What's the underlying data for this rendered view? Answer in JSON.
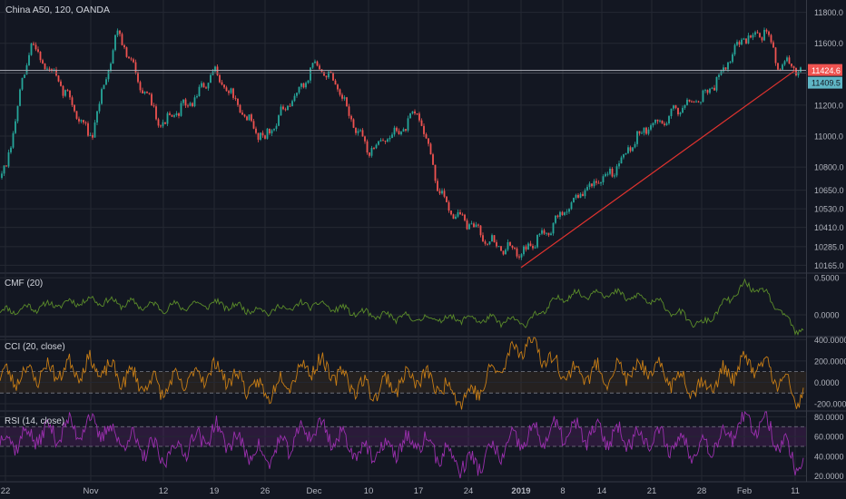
{
  "header": {
    "title": "China A50, 120, OANDA"
  },
  "panels": {
    "cmf": {
      "label": "CMF (20)",
      "ticks": [
        "0.5000",
        "0.0000"
      ]
    },
    "cci": {
      "label": "CCI (20, close)",
      "ticks": [
        "400.0000",
        "200.0000",
        "0.0000",
        "-200.0000"
      ]
    },
    "rsi": {
      "label": "RSI (14, close)",
      "ticks": [
        "80.0000",
        "60.0000",
        "40.0000",
        "20.0000"
      ]
    }
  },
  "price_axis": {
    "ticks": [
      "11800.0",
      "11600.0",
      "11200.0",
      "11000.0",
      "10800.0",
      "10650.0",
      "10530.0",
      "10410.0",
      "10285.0",
      "10165.0"
    ],
    "last_price_label": "11424.6",
    "prev_close_label": "11409.5"
  },
  "time_axis": {
    "labels": [
      "22",
      "Nov",
      "12",
      "19",
      "26",
      "Dec",
      "10",
      "17",
      "24",
      "2019",
      "8",
      "14",
      "21",
      "28",
      "Feb",
      "11"
    ]
  },
  "colors": {
    "background": "#131722",
    "up": "#26a69a",
    "down": "#ef5350",
    "trendline": "#e0332f",
    "cmf": "#5b8c2a",
    "cci": "#c77d15",
    "rsi": "#9b2fae",
    "last_price_bg": "#ef5350",
    "prev_close_bg": "#5fb6c5"
  },
  "chart_data": [
    {
      "type": "candlestick",
      "title": "China A50, 120, OANDA",
      "x": [
        "Oct 22",
        "Oct 25",
        "Nov 1",
        "Nov 5",
        "Nov 12",
        "Nov 19",
        "Nov 26",
        "Dec 1",
        "Dec 5",
        "Dec 10",
        "Dec 17",
        "Dec 20",
        "Dec 24",
        "Dec 27",
        "Jan 2",
        "Jan 8",
        "Jan 14",
        "Jan 21",
        "Jan 28",
        "Feb 1",
        "Feb 5",
        "Feb 8",
        "Feb 11"
      ],
      "close": [
        10750,
        11620,
        11000,
        11660,
        11050,
        11400,
        10970,
        11460,
        11300,
        10890,
        11150,
        10620,
        10430,
        10320,
        10245,
        10520,
        10720,
        11080,
        11250,
        11620,
        11700,
        11450,
        11425
      ],
      "ylim": [
        10120,
        11880
      ],
      "trendline": [
        [
          "Jan 1",
          10150
        ],
        [
          "Feb 11",
          11425
        ]
      ],
      "horizontal_line": 11424.6
    },
    {
      "type": "line",
      "title": "CMF (20)",
      "x": [
        "Oct 22",
        "Nov 1",
        "Nov 12",
        "Nov 19",
        "Nov 26",
        "Dec 1",
        "Dec 10",
        "Dec 17",
        "Dec 24",
        "Jan 2",
        "Jan 8",
        "Jan 14",
        "Jan 21",
        "Jan 28",
        "Feb 1",
        "Feb 5",
        "Feb 11"
      ],
      "series": [
        {
          "values": [
            0.05,
            0.2,
            0.1,
            0.15,
            0.05,
            0.15,
            0.0,
            -0.05,
            -0.05,
            -0.1,
            0.25,
            0.3,
            0.2,
            -0.15,
            0.4,
            0.3,
            -0.2
          ]
        }
      ],
      "ylim": [
        -0.28,
        0.55
      ]
    },
    {
      "type": "line",
      "title": "CCI (20, close)",
      "x": [
        "Oct 22",
        "Nov 1",
        "Nov 12",
        "Nov 19",
        "Nov 26",
        "Dec 1",
        "Dec 10",
        "Dec 17",
        "Dec 24",
        "Jan 2",
        "Jan 8",
        "Jan 14",
        "Jan 21",
        "Jan 28",
        "Feb 1",
        "Feb 5",
        "Feb 11"
      ],
      "series": [
        {
          "values": [
            50,
            150,
            -50,
            120,
            -100,
            180,
            -80,
            60,
            -150,
            400,
            100,
            80,
            120,
            -60,
            170,
            150,
            -120
          ]
        }
      ],
      "bands": [
        100,
        -100
      ],
      "ylim": [
        -260,
        420
      ]
    },
    {
      "type": "line",
      "title": "RSI (14, close)",
      "x": [
        "Oct 22",
        "Nov 1",
        "Nov 12",
        "Nov 19",
        "Nov 26",
        "Dec 1",
        "Dec 10",
        "Dec 17",
        "Dec 24",
        "Jan 2",
        "Jan 8",
        "Jan 14",
        "Jan 21",
        "Jan 28",
        "Feb 1",
        "Feb 5",
        "Feb 11"
      ],
      "series": [
        {
          "values": [
            55,
            72,
            40,
            65,
            38,
            70,
            42,
            55,
            30,
            60,
            65,
            62,
            58,
            48,
            72,
            75,
            35
          ]
        }
      ],
      "bands": [
        70,
        50
      ],
      "ylim": [
        15,
        85
      ]
    }
  ]
}
